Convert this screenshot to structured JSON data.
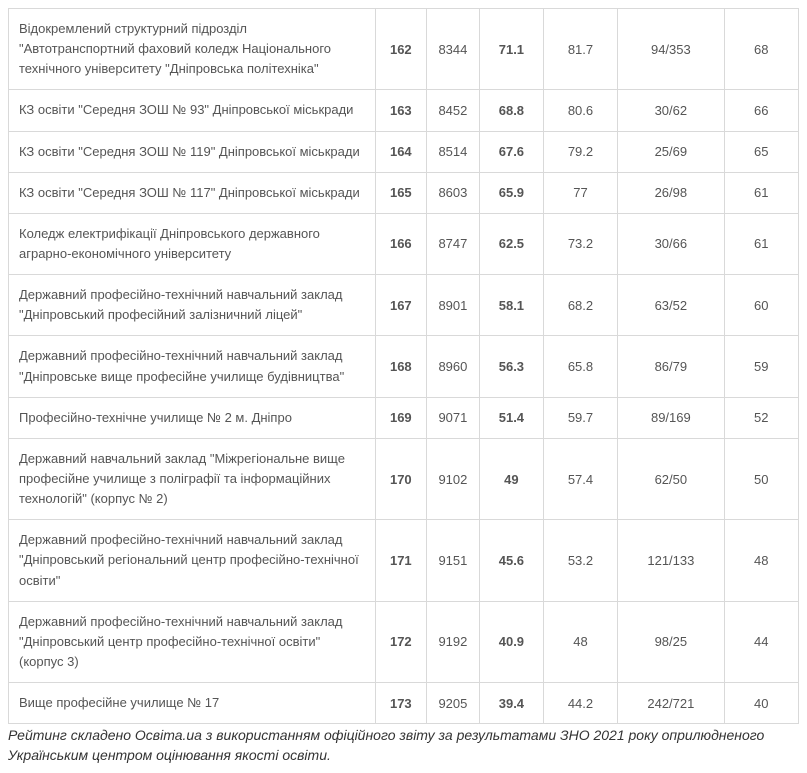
{
  "table": {
    "rows": [
      {
        "name": "Відокремлений структурний підрозділ \"Автотранспортний фаховий коледж Національного технічного університету \"Дніпровська політехніка\"",
        "rank": "162",
        "code": "8344",
        "score1": "71.1",
        "score2": "81.7",
        "ratio": "94/353",
        "last": "68"
      },
      {
        "name": "КЗ освіти \"Середня ЗОШ № 93\" Дніпровської міськради",
        "rank": "163",
        "code": "8452",
        "score1": "68.8",
        "score2": "80.6",
        "ratio": "30/62",
        "last": "66"
      },
      {
        "name": "КЗ освіти \"Середня ЗОШ № 119\" Дніпровської міськради",
        "rank": "164",
        "code": "8514",
        "score1": "67.6",
        "score2": "79.2",
        "ratio": "25/69",
        "last": "65"
      },
      {
        "name": "КЗ освіти \"Середня ЗОШ № 117\" Дніпровської міськради",
        "rank": "165",
        "code": "8603",
        "score1": "65.9",
        "score2": "77",
        "ratio": "26/98",
        "last": "61"
      },
      {
        "name": "Коледж електрифікації Дніпровського державного аграрно-економічного університету",
        "rank": "166",
        "code": "8747",
        "score1": "62.5",
        "score2": "73.2",
        "ratio": "30/66",
        "last": "61"
      },
      {
        "name": "Державний професійно-технічний навчальний заклад \"Дніпровський професійний залізничний ліцей\"",
        "rank": "167",
        "code": "8901",
        "score1": "58.1",
        "score2": "68.2",
        "ratio": "63/52",
        "last": "60"
      },
      {
        "name": "Державний професійно-технічний навчальний заклад \"Дніпровське вище професійне училище будівництва\"",
        "rank": "168",
        "code": "8960",
        "score1": "56.3",
        "score2": "65.8",
        "ratio": "86/79",
        "last": "59"
      },
      {
        "name": "Професійно-технічне училище № 2 м. Дніпро",
        "rank": "169",
        "code": "9071",
        "score1": "51.4",
        "score2": "59.7",
        "ratio": "89/169",
        "last": "52"
      },
      {
        "name": "Державний навчальний заклад \"Міжрегіональне вище професійне училище з поліграфії та інформаційних технологій\" (корпус № 2)",
        "rank": "170",
        "code": "9102",
        "score1": "49",
        "score2": "57.4",
        "ratio": "62/50",
        "last": "50"
      },
      {
        "name": "Державний професійно-технічний навчальний заклад \"Дніпровський регіональний центр професійно-технічної освіти\"",
        "rank": "171",
        "code": "9151",
        "score1": "45.6",
        "score2": "53.2",
        "ratio": "121/133",
        "last": "48"
      },
      {
        "name": "Державний професійно-технічний навчальний заклад \"Дніпровський центр професійно-технічної освіти\" (корпус 3)",
        "rank": "172",
        "code": "9192",
        "score1": "40.9",
        "score2": "48",
        "ratio": "98/25",
        "last": "44"
      },
      {
        "name": "Вище професійне училище № 17",
        "rank": "173",
        "code": "9205",
        "score1": "39.4",
        "score2": "44.2",
        "ratio": "242/721",
        "last": "40"
      }
    ]
  },
  "footnote": "Рейтинг складено Освіта.ua з використанням офіційного звіту за результатами ЗНО 2021 року оприлюдненого Українським центром оцінювання якості освіти."
}
